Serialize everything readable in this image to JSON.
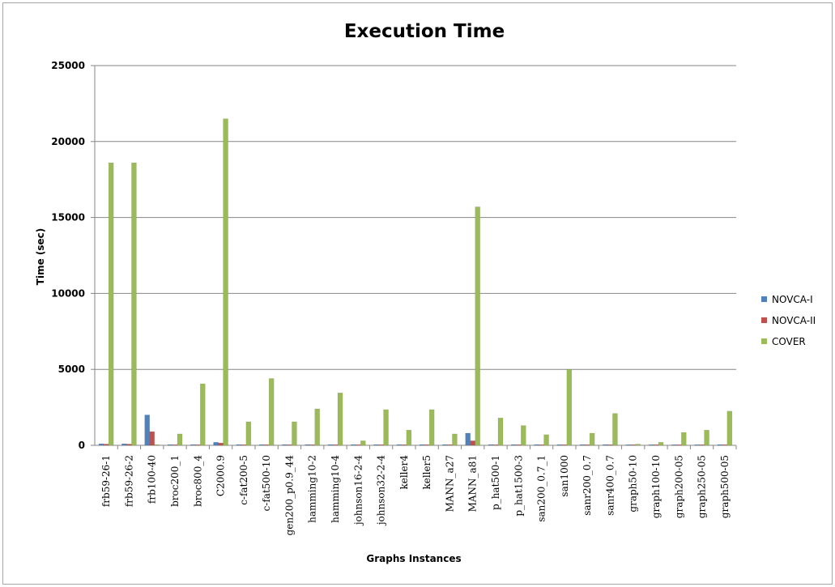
{
  "chart_data": {
    "type": "bar",
    "title": "Execution Time",
    "xlabel": "Graphs Instances",
    "ylabel": "Time (sec)",
    "ylim": [
      0,
      25000
    ],
    "yticks": [
      0,
      5000,
      10000,
      15000,
      20000,
      25000
    ],
    "grid": true,
    "legend_position": "right",
    "categories": [
      "frb59-26-1",
      "frb59-26-2",
      "frb100-40",
      "broc200_1",
      "broc800_4",
      "C2000.9",
      "c-fat200-5",
      "c-fat500-10",
      "gen200_p0.9_44",
      "hamming10-2",
      "hamming10-4",
      "johnson16-2-4",
      "johnson32-2-4",
      "keller4",
      "keller5",
      "MANN_a27",
      "MANN_a81",
      "p_hat500-1",
      "p_hat1500-3",
      "san200_0.7_1",
      "san1000",
      "sanr200_0.7",
      "sanr400_0.7",
      "graph50-10",
      "graph100-10",
      "graph200-05",
      "graph250-05",
      "graph500-05"
    ],
    "series": [
      {
        "name": "NOVCA-I",
        "color": "#4f81bd",
        "values": [
          100,
          100,
          2000,
          50,
          50,
          200,
          50,
          50,
          50,
          50,
          50,
          50,
          50,
          50,
          50,
          50,
          800,
          50,
          50,
          50,
          50,
          50,
          50,
          20,
          20,
          30,
          30,
          50
        ]
      },
      {
        "name": "NOVCA-II",
        "color": "#c0504d",
        "values": [
          80,
          80,
          900,
          40,
          40,
          150,
          40,
          40,
          40,
          40,
          40,
          40,
          40,
          40,
          40,
          40,
          300,
          40,
          40,
          40,
          40,
          40,
          40,
          15,
          15,
          25,
          25,
          40
        ]
      },
      {
        "name": "COVER",
        "color": "#9bbb59",
        "values": [
          18600,
          18600,
          50,
          750,
          4050,
          21500,
          1550,
          4400,
          1550,
          2400,
          3450,
          300,
          2350,
          1000,
          2350,
          750,
          15700,
          1800,
          1300,
          700,
          5000,
          800,
          2100,
          80,
          200,
          850,
          1000,
          2250
        ]
      }
    ]
  }
}
